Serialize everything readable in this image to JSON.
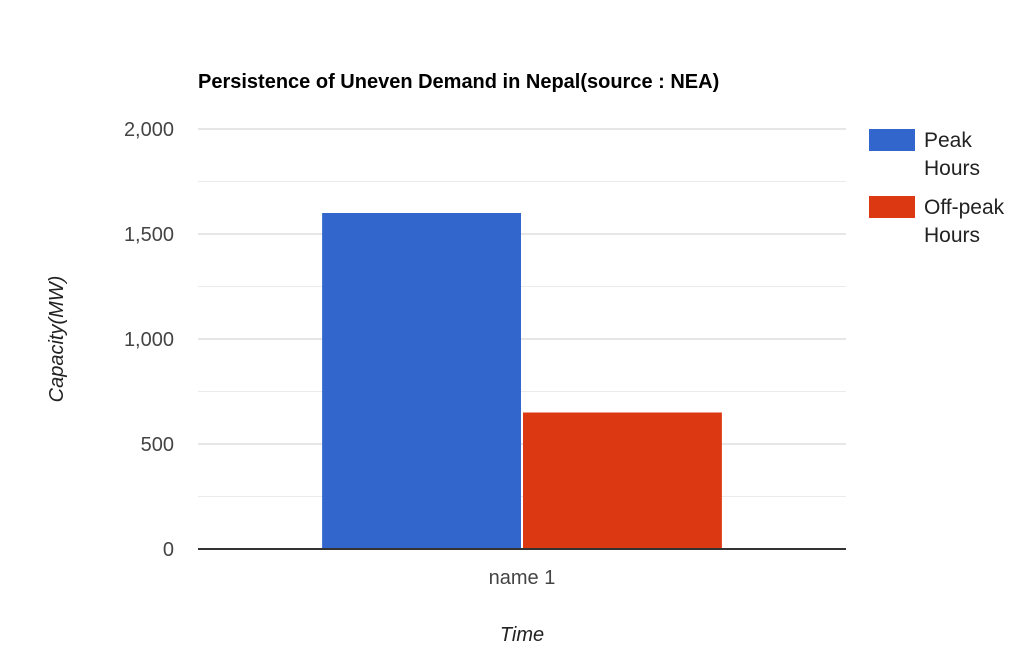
{
  "chart_data": {
    "type": "bar",
    "title": "Persistence of Uneven Demand in Nepal(source : NEA)",
    "xlabel": "Time",
    "ylabel": "Capacity(MW)",
    "categories": [
      "name 1"
    ],
    "series": [
      {
        "name": "Peak Hours",
        "values": [
          1600
        ],
        "color": "#3366cc"
      },
      {
        "name": "Off-peak Hours",
        "values": [
          650
        ],
        "color": "#dc3912"
      }
    ],
    "ylim": [
      0,
      2000
    ],
    "yticks": [
      0,
      500,
      1000,
      1500,
      2000
    ],
    "ytick_labels": [
      "0",
      "500",
      "1,000",
      "1,500",
      "2,000"
    ],
    "grid": true,
    "legend_position": "right"
  }
}
